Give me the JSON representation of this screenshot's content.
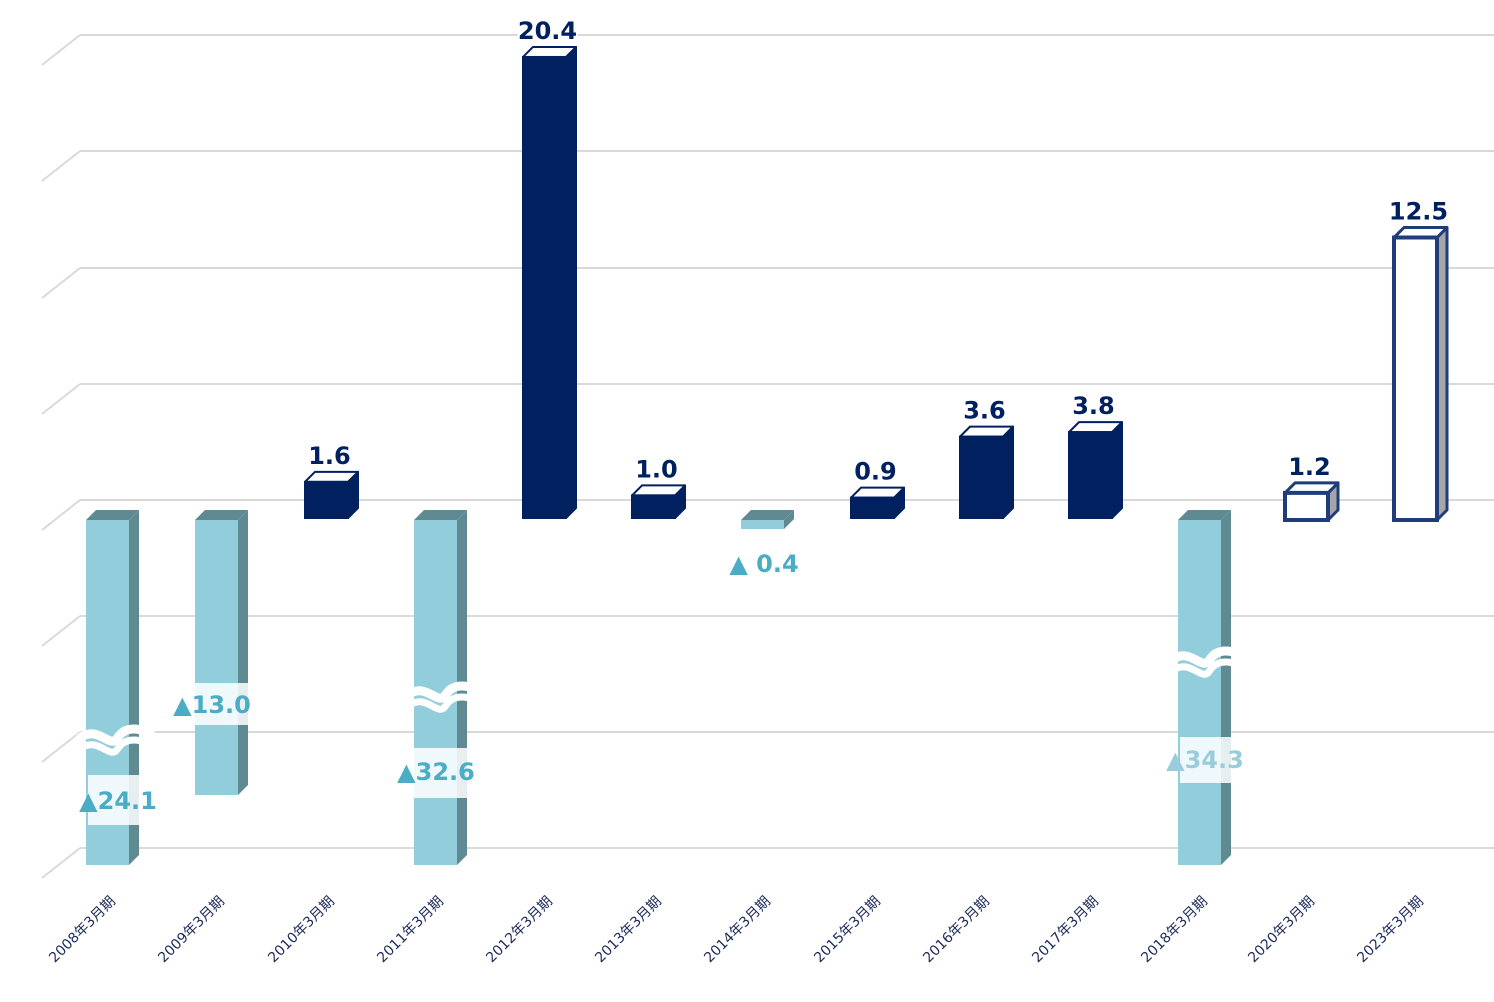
{
  "chart_data": {
    "type": "bar",
    "categories": [
      "2008年3月期",
      "2009年3月期",
      "2010年3月期",
      "2011年3月期",
      "2012年3月期",
      "2013年3月期",
      "2014年3月期",
      "2015年3月期",
      "2016年3月期",
      "2017年3月期",
      "2018年3月期",
      "2020年3月期",
      "2023年3月期"
    ],
    "values": [
      -24.1,
      -13.0,
      1.6,
      -32.6,
      20.4,
      1.0,
      -0.4,
      0.9,
      3.6,
      3.8,
      -34.3,
      1.2,
      12.5
    ],
    "value_labels": [
      "▲24.1",
      "▲13.0",
      "1.6",
      "▲32.6",
      "20.4",
      "1.0",
      "▲ 0.4",
      "0.9",
      "3.6",
      "3.8",
      "▲34.3",
      "1.2",
      "12.5"
    ],
    "bar_styles": [
      "negative",
      "negative",
      "positive",
      "negative",
      "positive",
      "positive",
      "negative",
      "positive",
      "positive",
      "positive",
      "negative",
      "forecast",
      "forecast"
    ],
    "axis_breaks": [
      0,
      3,
      10
    ],
    "grid": true,
    "style": "3d-bar",
    "colors": {
      "positive": "#002060",
      "negative": "#92CDDC",
      "negative_side": "#5F8A92",
      "negative_label": "#4BACC6",
      "forecast_outline": "#1F3D7A",
      "forecast_side": "#A6A6A6",
      "grid": "#D9D9D9"
    }
  }
}
